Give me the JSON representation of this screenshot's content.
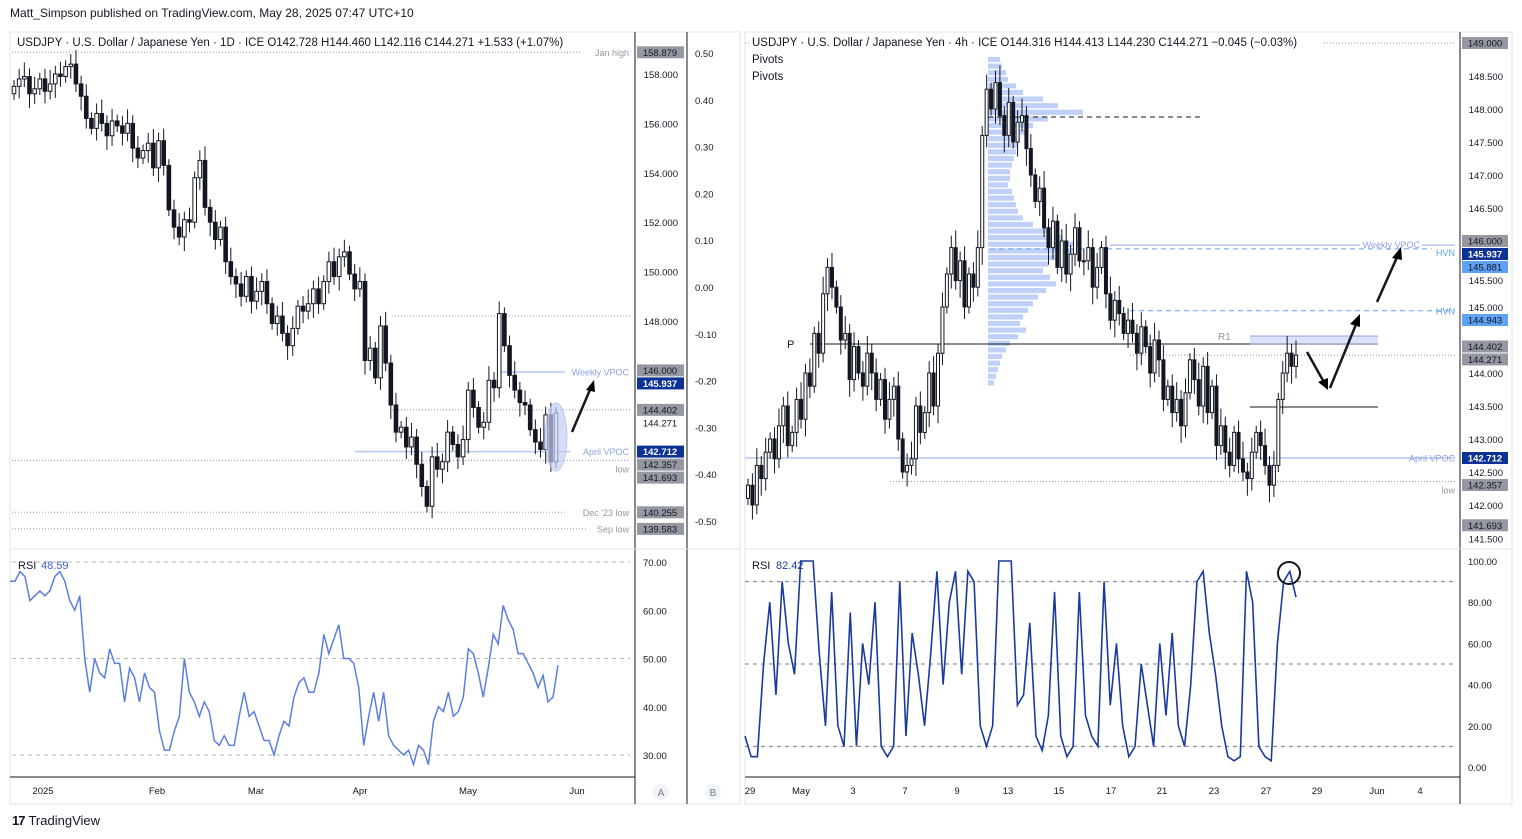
{
  "published": "Matt_Simpson published on TradingView.com, May 28, 2025 07:47 UTC+10",
  "brand": "TradingView",
  "colors": {
    "up": "#131722",
    "down": "#131722",
    "rsi_daily": "#5b7fe0",
    "rsi_4h": "#1b3a9e",
    "vpoc": "#0d3296",
    "hvn": "#5ea1f5",
    "gray_label": "#9598a1",
    "profile": "#a9c2f5"
  },
  "left_chart": {
    "legend": {
      "symbol": "USDJPY · U.S. Dollar / Japanese Yen · 1D · ICE",
      "open": "O142.728",
      "high": "H144.460",
      "low": "L142.116",
      "close": "C144.271",
      "change": "+1.533 (+1.07%)"
    },
    "price_ticks": [
      "158.000",
      "156.000",
      "154.000",
      "152.000",
      "150.000",
      "148.000"
    ],
    "pct_ticks": [
      "0.50",
      "0.40",
      "0.30",
      "0.20",
      "0.10",
      "0.00",
      "-0.10",
      "-0.20",
      "-0.30",
      "-0.40",
      "-0.50"
    ],
    "price_labels": [
      {
        "text": "158.879",
        "price": 158.879,
        "style": "gray"
      },
      {
        "text": "146.000",
        "price": 146.0,
        "style": "gray"
      },
      {
        "text": "145.937",
        "price": 145.937,
        "style": "vpoc"
      },
      {
        "text": "144.402",
        "price": 144.402,
        "style": "gray"
      },
      {
        "text": "144.271",
        "price": 144.271,
        "style": "plain"
      },
      {
        "text": "142.712",
        "price": 142.712,
        "style": "vpoc"
      },
      {
        "text": "142.357",
        "price": 142.357,
        "style": "gray"
      },
      {
        "text": "141.693",
        "price": 141.693,
        "style": "gray"
      },
      {
        "text": "140.255",
        "price": 140.255,
        "style": "gray"
      },
      {
        "text": "139.583",
        "price": 139.583,
        "style": "gray"
      }
    ],
    "levels": [
      {
        "label": "Jan high",
        "price": 158.879,
        "style": "dotted"
      },
      {
        "label": "Weekly VPOC",
        "price": 145.937,
        "style": "vpoc"
      },
      {
        "label": "April VPOC",
        "price": 142.712,
        "style": "vpoc"
      },
      {
        "label": "low",
        "price": 142.357,
        "style": "dotted"
      },
      {
        "label": "Dec '23 low",
        "price": 140.255,
        "style": "dotted"
      },
      {
        "label": "Sep low",
        "price": 139.583,
        "style": "dotted"
      }
    ],
    "time_ticks": [
      "2025",
      "Feb",
      "Mar",
      "Apr",
      "May",
      "Jun"
    ],
    "scale_buttons": [
      "A",
      "B"
    ],
    "rsi": {
      "label": "RSI",
      "value": "48.59",
      "ticks": [
        "70.00",
        "60.00",
        "50.00",
        "40.00",
        "30.00"
      ]
    },
    "closes": [
      157.5,
      157.8,
      157.9,
      157.2,
      157.4,
      157.8,
      157.3,
      157.6,
      158.0,
      157.9,
      158.3,
      158.4,
      157.6,
      157.1,
      156.2,
      155.8,
      156.4,
      156.0,
      155.5,
      156.1,
      155.9,
      155.6,
      156.0,
      155.0,
      154.6,
      154.9,
      155.2,
      154.2,
      155.3,
      154.3,
      152.5,
      151.8,
      151.4,
      152.1,
      152.0,
      153.8,
      154.5,
      152.6,
      152.0,
      151.3,
      151.8,
      150.4,
      149.8,
      149.5,
      149.0,
      149.8,
      148.8,
      149.2,
      149.6,
      148.7,
      147.9,
      148.2,
      147.5,
      147.0,
      147.7,
      148.6,
      148.4,
      148.7,
      149.3,
      148.7,
      149.6,
      150.4,
      149.8,
      150.6,
      150.8,
      149.9,
      149.3,
      149.6,
      146.4,
      146.9,
      145.7,
      147.8,
      146.3,
      144.6,
      143.5,
      143.7,
      142.9,
      143.3,
      142.2,
      141.3,
      140.5,
      142.5,
      142.0,
      142.3,
      143.5,
      143.0,
      142.5,
      143.2,
      145.2,
      144.5,
      143.7,
      143.9,
      145.6,
      145.3,
      148.3,
      147.0,
      145.8,
      145.2,
      144.7,
      144.6,
      143.6,
      143.1,
      142.8,
      144.2,
      142.3,
      144.271
    ],
    "rsi_values": [
      66,
      66,
      68,
      67,
      62,
      63,
      64,
      63,
      64,
      67,
      68,
      66,
      62,
      60,
      63,
      50,
      43,
      50,
      47,
      46,
      52,
      49,
      49,
      41,
      48,
      46,
      41,
      47,
      44,
      43,
      35,
      31,
      31,
      35,
      38,
      50,
      43,
      41,
      38,
      41,
      39,
      33,
      32,
      34,
      32,
      32,
      38,
      43,
      38,
      39,
      36,
      33,
      33,
      30,
      34,
      37,
      36,
      42,
      45,
      46,
      43,
      43,
      47,
      55,
      51,
      54,
      57,
      50,
      50,
      49,
      44,
      32,
      38,
      43,
      37,
      43,
      34,
      32,
      31,
      30,
      31,
      28,
      32,
      31,
      28,
      37,
      40,
      39,
      43,
      38,
      39,
      42,
      52,
      51,
      47,
      42,
      48,
      55,
      53,
      61,
      58,
      56,
      51,
      51,
      49,
      47,
      44,
      46.5,
      41,
      42,
      48.59
    ]
  },
  "right_chart": {
    "legend": {
      "symbol": "USDJPY · U.S. Dollar / Japanese Yen · 4h · ICE",
      "open": "O144.316",
      "high": "H144.413",
      "low": "L144.230",
      "close": "C144.271",
      "change": "−0.045 (−0.03%)"
    },
    "indicators": [
      "Pivots",
      "Pivots"
    ],
    "price_ticks": [
      "148.500",
      "148.000",
      "147.500",
      "147.000",
      "146.500",
      "145.500",
      "145.000",
      "144.000",
      "143.500",
      "143.000",
      "142.500",
      "142.000",
      "141.500"
    ],
    "price_labels": [
      {
        "text": "149.000",
        "price": 149.0,
        "style": "gray"
      },
      {
        "text": "146.000",
        "price": 146.0,
        "style": "gray"
      },
      {
        "text": "145.937",
        "price": 145.937,
        "style": "vpoc"
      },
      {
        "text": "145.881",
        "price": 145.881,
        "style": "hvn"
      },
      {
        "text": "144.943",
        "price": 144.943,
        "style": "hvn"
      },
      {
        "text": "144.402",
        "price": 144.402,
        "style": "gray"
      },
      {
        "text": "144.271",
        "price": 144.271,
        "style": "gray"
      },
      {
        "text": "142.712",
        "price": 142.712,
        "style": "vpoc"
      },
      {
        "text": "142.357",
        "price": 142.357,
        "style": "gray"
      },
      {
        "text": "141.693",
        "price": 141.693,
        "style": "gray"
      }
    ],
    "levels": [
      {
        "label": "Weekly VPOC",
        "price": 145.937,
        "style": "vpoc"
      },
      {
        "label": "HVN",
        "price": 145.881,
        "style": "hvn"
      },
      {
        "label": "HVN",
        "price": 144.943,
        "style": "hvn"
      },
      {
        "label": "April VPOC",
        "price": 142.712,
        "style": "vpoc"
      },
      {
        "label": "low",
        "price": 142.357,
        "style": "dotted"
      }
    ],
    "pivots": {
      "P": "P",
      "R1": "R1"
    },
    "time_ticks": [
      "29",
      "May",
      "3",
      "7",
      "9",
      "13",
      "15",
      "17",
      "21",
      "23",
      "27",
      "29",
      "Jun",
      "4"
    ],
    "rsi": {
      "label": "RSI",
      "value": "82.42",
      "ticks": [
        "100.00",
        "80.00",
        "60.00",
        "40.00",
        "20.00",
        "0.00"
      ]
    },
    "closes": [
      142.3,
      142.0,
      142.6,
      142.4,
      142.8,
      143.0,
      142.7,
      143.2,
      143.5,
      142.9,
      143.1,
      143.6,
      143.3,
      144.0,
      143.8,
      144.6,
      144.3,
      145.2,
      145.6,
      145.3,
      145.0,
      144.5,
      144.6,
      143.9,
      144.4,
      144.0,
      143.8,
      144.3,
      144.0,
      143.6,
      143.9,
      143.3,
      143.6,
      143.8,
      143.0,
      142.5,
      142.6,
      142.7,
      143.5,
      143.1,
      143.4,
      144.0,
      143.5,
      144.3,
      145.0,
      145.5,
      145.9,
      145.4,
      145.7,
      145.0,
      145.5,
      145.3,
      145.9,
      147.6,
      148.3,
      148.0,
      148.4,
      147.9,
      147.6,
      148.1,
      147.5,
      147.8,
      147.9,
      147.4,
      147.0,
      146.6,
      146.8,
      146.2,
      145.9,
      146.3,
      145.6,
      146.0,
      145.5,
      145.8,
      146.2,
      145.7,
      145.7,
      145.9,
      145.3,
      145.6,
      145.9,
      145.2,
      144.8,
      145.1,
      144.9,
      144.6,
      144.8,
      144.6,
      144.3,
      144.7,
      144.4,
      144.0,
      144.5,
      144.2,
      143.6,
      143.8,
      143.4,
      143.6,
      143.2,
      143.7,
      144.2,
      143.9,
      143.5,
      144.1,
      143.4,
      143.8,
      142.9,
      143.2,
      142.8,
      142.6,
      143.1,
      142.7,
      142.5,
      142.4,
      142.8,
      143.1,
      142.9,
      142.6,
      142.3,
      142.6,
      143.6,
      144.0,
      144.3,
      144.1,
      144.271
    ],
    "rsi_values": [
      15,
      5,
      5,
      50,
      80,
      35,
      90,
      60,
      45,
      100,
      100,
      100,
      55,
      20,
      85,
      20,
      10,
      75,
      10,
      60,
      40,
      80,
      10,
      5,
      10,
      90,
      15,
      65,
      45,
      20,
      55,
      95,
      40,
      80,
      95,
      45,
      95,
      90,
      20,
      10,
      20,
      100,
      100,
      100,
      30,
      35,
      70,
      15,
      8,
      25,
      85,
      15,
      5,
      10,
      85,
      25,
      15,
      10,
      90,
      30,
      60,
      20,
      5,
      10,
      50,
      30,
      10,
      60,
      25,
      65,
      20,
      10,
      40,
      90,
      95,
      65,
      45,
      20,
      5,
      3,
      5,
      95,
      80,
      10,
      5,
      3,
      60,
      90,
      95,
      82.42
    ],
    "volume_profile": {
      "top_price": 148.75,
      "step": 0.1,
      "values": [
        12,
        14,
        18,
        20,
        28,
        35,
        55,
        70,
        95,
        60,
        45,
        40,
        32,
        30,
        28,
        26,
        24,
        22,
        22,
        20,
        24,
        26,
        28,
        30,
        35,
        45,
        60,
        75,
        90,
        85,
        70,
        60,
        55,
        62,
        68,
        58,
        50,
        45,
        40,
        35,
        32,
        38,
        30,
        22,
        18,
        14,
        12,
        10,
        8,
        6
      ]
    }
  }
}
